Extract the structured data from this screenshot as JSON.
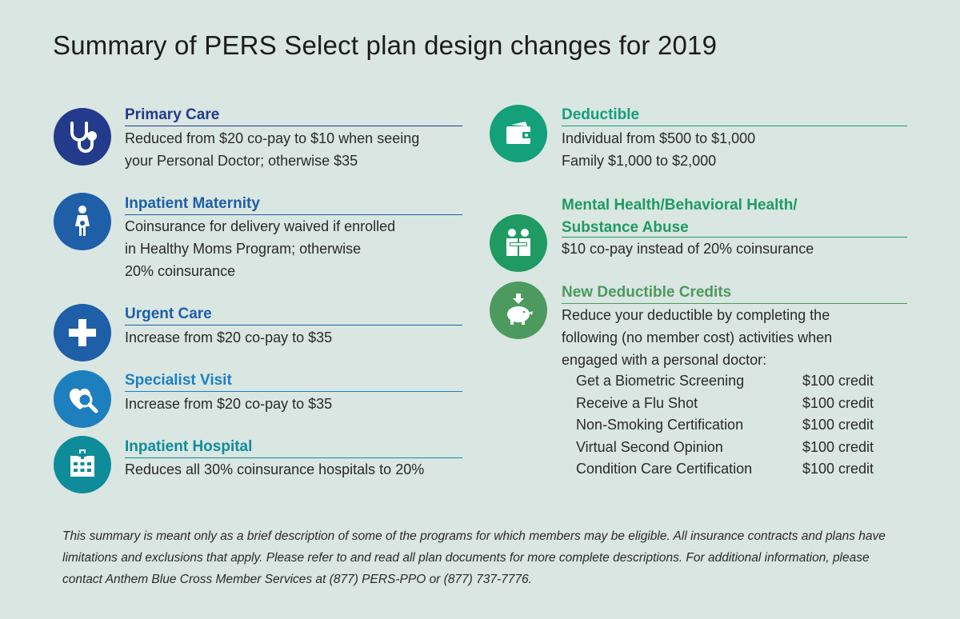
{
  "title": "Summary of PERS Select plan design changes for 2019",
  "colors": {
    "navy": "#243a8a",
    "blue": "#1e5fa8",
    "teal": "#0f8c9a",
    "green": "#1f9a63",
    "greenDark": "#4c9a5e",
    "background": "#d9e6e2"
  },
  "left": [
    {
      "icon": "stethoscope-icon",
      "heading": "Primary Care",
      "lines": [
        "Reduced from $20 co-pay to $10 when seeing",
        "your Personal Doctor; otherwise $35"
      ]
    },
    {
      "icon": "pregnant-woman-icon",
      "heading": "Inpatient Maternity",
      "lines": [
        "Coinsurance for delivery waived if enrolled",
        "in Healthy Moms Program; otherwise",
        "20% coinsurance"
      ]
    },
    {
      "icon": "medical-cross-icon",
      "heading": "Urgent Care",
      "lines": [
        "Increase from $20 co-pay to $35"
      ]
    },
    {
      "icon": "heart-magnifier-icon",
      "heading": "Specialist Visit",
      "lines": [
        "Increase from $20 co-pay to $35"
      ]
    },
    {
      "icon": "hospital-icon",
      "heading": "Inpatient Hospital",
      "lines": [
        "Reduces all 30% coinsurance hospitals to 20%"
      ]
    }
  ],
  "right": [
    {
      "icon": "wallet-icon",
      "heading": "Deductible",
      "lines": [
        "Individual from $500 to $1,000",
        "Family $1,000 to $2,000"
      ]
    },
    {
      "icon": "people-hug-icon",
      "heading_line1": "Mental Health/Behavioral Health/",
      "heading_line2": "Substance Abuse",
      "lines": [
        "$10 co-pay instead of 20% coinsurance"
      ]
    },
    {
      "icon": "piggy-bank-icon",
      "heading": "New Deductible Credits",
      "lines": [
        "Reduce your deductible by completing the",
        "following (no member cost) activities when",
        "engaged with a personal doctor:"
      ],
      "credits": [
        {
          "activity": "Get a Biometric Screening",
          "amount": "$100 credit"
        },
        {
          "activity": "Receive a Flu Shot",
          "amount": "$100 credit"
        },
        {
          "activity": "Non-Smoking Certification",
          "amount": "$100 credit"
        },
        {
          "activity": "Virtual Second Opinion",
          "amount": "$100 credit"
        },
        {
          "activity": "Condition Care Certification",
          "amount": "$100 credit"
        }
      ]
    }
  ],
  "footnote": "This summary is meant only as a brief description of some of the programs for which members may be eligible. All insurance contracts and plans have limitations and exclusions that apply. Please refer to and read all plan documents for more complete descriptions. For additional information, please contact Anthem Blue Cross Member Services at (877) PERS-PPO or (877) 737-7776."
}
